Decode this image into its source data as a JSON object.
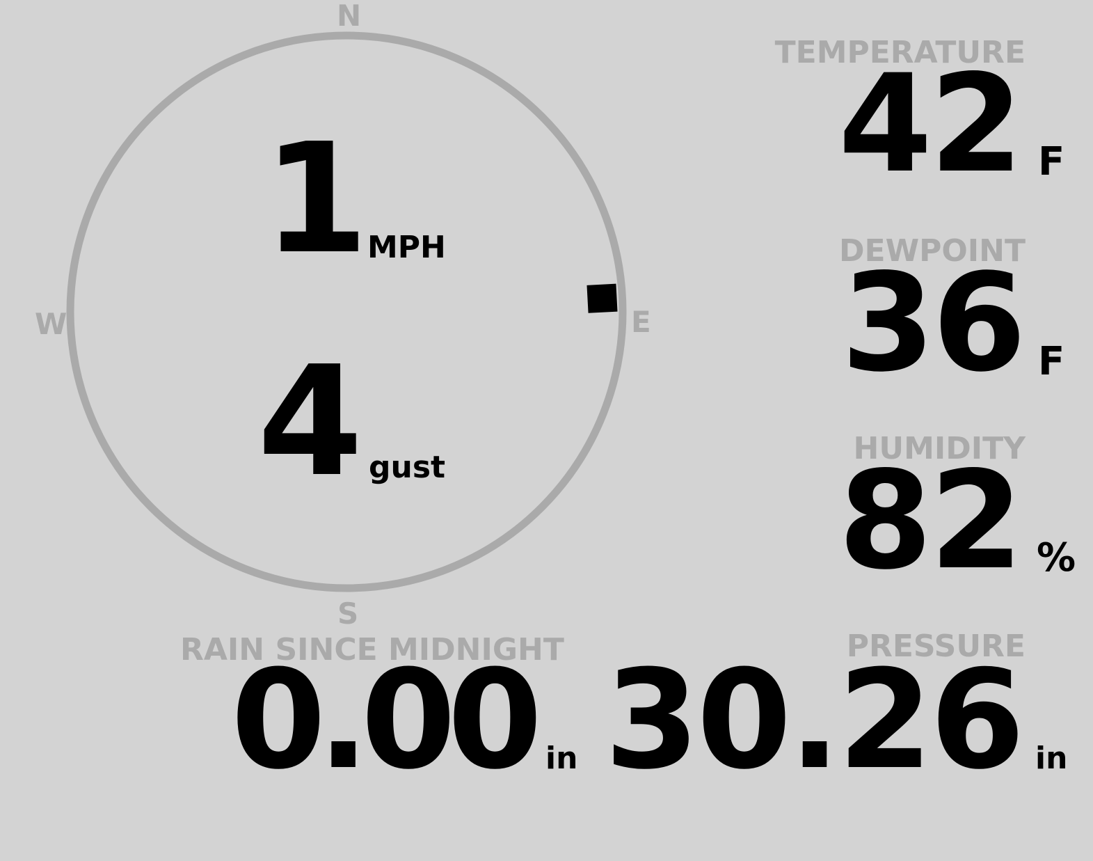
{
  "wind": {
    "speed": "1",
    "speed_unit": "MPH",
    "gust": "4",
    "gust_label": "gust",
    "direction_degrees": 87,
    "cardinals": {
      "n": "N",
      "e": "E",
      "s": "S",
      "w": "W"
    }
  },
  "temperature": {
    "label": "TEMPERATURE",
    "value": "42",
    "unit": "F"
  },
  "dewpoint": {
    "label": "DEWPOINT",
    "value": "36",
    "unit": "F"
  },
  "humidity": {
    "label": "HUMIDITY",
    "value": "82",
    "unit": "%"
  },
  "rain": {
    "label": "RAIN SINCE MIDNIGHT",
    "value": "0.00",
    "unit": "in"
  },
  "pressure": {
    "label": "PRESSURE",
    "value": "30.26",
    "unit": "in"
  },
  "colors": {
    "background": "#d3d3d3",
    "label": "#aaaaaa",
    "value": "#000000",
    "ring": "#aaaaaa"
  }
}
